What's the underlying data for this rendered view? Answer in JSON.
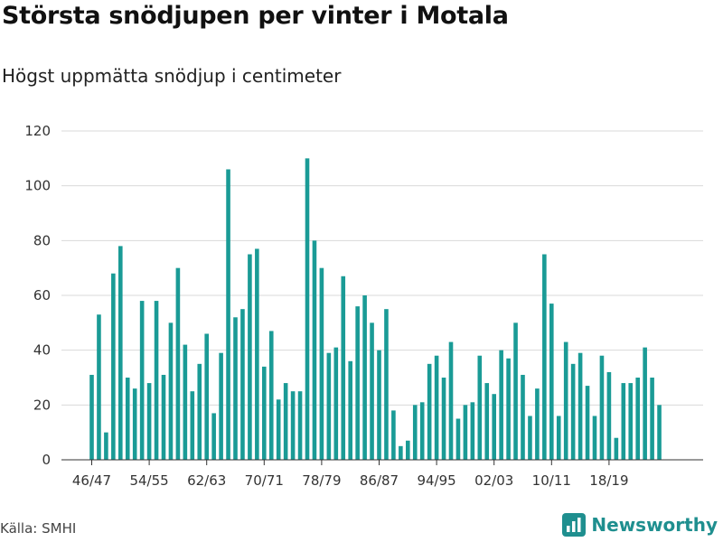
{
  "chart_data": {
    "type": "bar",
    "title": "Största snödjupen per vinter i Motala",
    "subtitle": "Högst uppmätta snödjup i centimeter",
    "xlabel": "",
    "ylabel": "",
    "ylim": [
      0,
      120
    ],
    "yticks": [
      "0",
      "20",
      "40",
      "60",
      "80",
      "100",
      "120"
    ],
    "xtick_labels": [
      "46/47",
      "54/55",
      "62/63",
      "70/71",
      "78/79",
      "86/87",
      "94/95",
      "02/03",
      "10/11",
      "18/19"
    ],
    "xtick_indices": [
      0,
      8,
      16,
      24,
      32,
      40,
      48,
      56,
      64,
      72
    ],
    "values": [
      31,
      53,
      10,
      68,
      78,
      30,
      26,
      58,
      28,
      58,
      31,
      50,
      70,
      42,
      25,
      35,
      46,
      17,
      39,
      106,
      52,
      55,
      75,
      77,
      34,
      47,
      22,
      28,
      25,
      25,
      110,
      80,
      70,
      39,
      41,
      67,
      36,
      56,
      60,
      50,
      40,
      55,
      18,
      5,
      7,
      20,
      21,
      35,
      38,
      30,
      43,
      15,
      20,
      21,
      38,
      28,
      24,
      40,
      37,
      50,
      31,
      16,
      26,
      75,
      57,
      16,
      43,
      35,
      39,
      27,
      16,
      38,
      32,
      8,
      28,
      28,
      30,
      41,
      30,
      20
    ],
    "bar_color": "#1a9b96",
    "grid": true
  },
  "source": "Källa: SMHI",
  "brand": {
    "name": "Newsworthy",
    "color": "#1f8f8f"
  }
}
